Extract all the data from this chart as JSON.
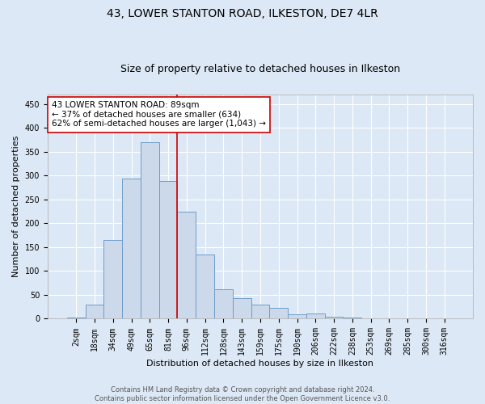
{
  "title1": "43, LOWER STANTON ROAD, ILKESTON, DE7 4LR",
  "title2": "Size of property relative to detached houses in Ilkeston",
  "xlabel": "Distribution of detached houses by size in Ilkeston",
  "ylabel": "Number of detached properties",
  "categories": [
    "2sqm",
    "18sqm",
    "34sqm",
    "49sqm",
    "65sqm",
    "81sqm",
    "96sqm",
    "112sqm",
    "128sqm",
    "143sqm",
    "159sqm",
    "175sqm",
    "190sqm",
    "206sqm",
    "222sqm",
    "238sqm",
    "253sqm",
    "269sqm",
    "285sqm",
    "300sqm",
    "316sqm"
  ],
  "values": [
    2,
    29,
    165,
    293,
    370,
    289,
    225,
    134,
    62,
    43,
    30,
    22,
    10,
    11,
    5,
    2,
    1,
    0,
    0,
    0,
    0
  ],
  "bar_color": "#ccd9ea",
  "bar_edge_color": "#6e9dc9",
  "vline_color": "#cc0000",
  "annotation_text": "43 LOWER STANTON ROAD: 89sqm\n← 37% of detached houses are smaller (634)\n62% of semi-detached houses are larger (1,043) →",
  "annotation_box_color": "white",
  "annotation_box_edge": "#cc0000",
  "ylim": [
    0,
    470
  ],
  "yticks": [
    0,
    50,
    100,
    150,
    200,
    250,
    300,
    350,
    400,
    450
  ],
  "bg_color": "#dce8f5",
  "plot_bg_color": "#dce8f5",
  "title1_fontsize": 10,
  "title2_fontsize": 9,
  "axis_label_fontsize": 8,
  "tick_fontsize": 7,
  "footnote_fontsize": 6,
  "annotation_fontsize": 7.5,
  "footnote": "Contains HM Land Registry data © Crown copyright and database right 2024.\nContains public sector information licensed under the Open Government Licence v3.0."
}
